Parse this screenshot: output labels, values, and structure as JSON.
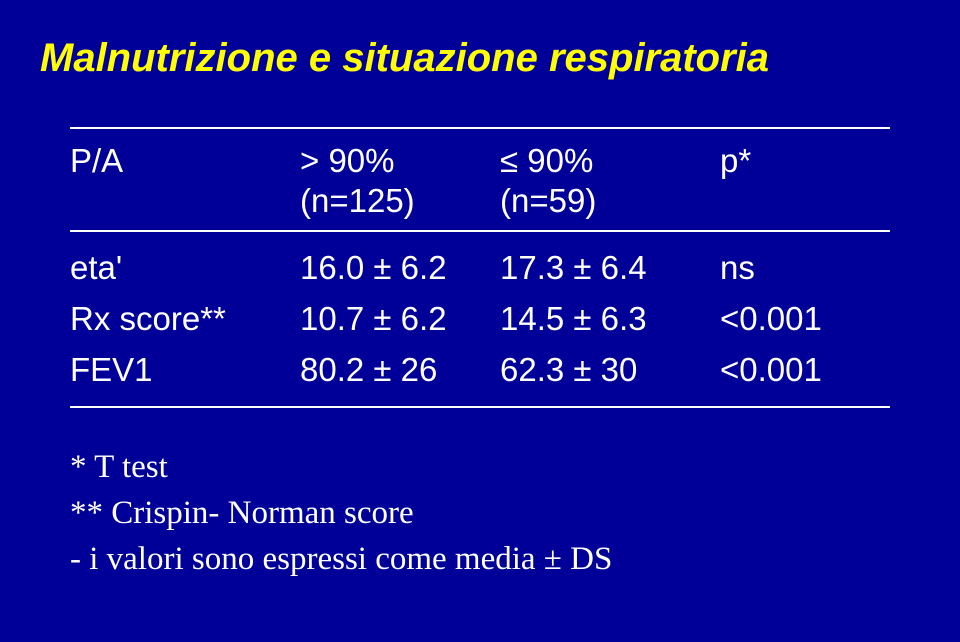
{
  "background_color": "#000099",
  "title_color": "#ffff00",
  "text_color": "#ffffff",
  "title": "Malnutrizione e situazione respiratoria",
  "header": {
    "c0": "P/A",
    "c1a": "> 90%",
    "c1b": "(n=125)",
    "c2a": "≤ 90%",
    "c2b": "(n=59)",
    "c3": "p*"
  },
  "rows": [
    {
      "c0": "eta'",
      "c1": "16.0 ± 6.2",
      "c2": "17.3 ± 6.4",
      "c3": "ns"
    },
    {
      "c0": "Rx score**",
      "c1": "10.7 ± 6.2",
      "c2": "14.5 ± 6.3",
      "c3": "<0.001"
    },
    {
      "c0": "FEV1",
      "c1": "80.2 ± 26",
      "c2": "62.3 ± 30",
      "c3": "<0.001"
    }
  ],
  "notes": {
    "n1": "* T test",
    "n2": "** Crispin- Norman score",
    "n3": "- i valori sono espressi come media ± DS"
  }
}
